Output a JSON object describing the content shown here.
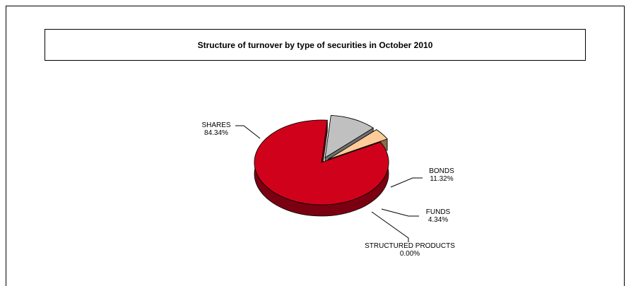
{
  "chart_data": {
    "type": "pie",
    "title": "Structure of turnover by type of securities in October 2010",
    "categories": [
      "SHARES",
      "BONDS",
      "FUNDS",
      "STRUCTURED PRODUCTS"
    ],
    "values": [
      84.34,
      11.32,
      4.34,
      0.0
    ],
    "value_labels": [
      "84.34%",
      "11.32%",
      "4.34%",
      "0.00%"
    ],
    "unit": "%",
    "style": "3d-exploded",
    "colors": [
      "#D0021B",
      "#C0C0C0",
      "#FFCC99",
      "#9966CC"
    ],
    "legend": "none"
  }
}
